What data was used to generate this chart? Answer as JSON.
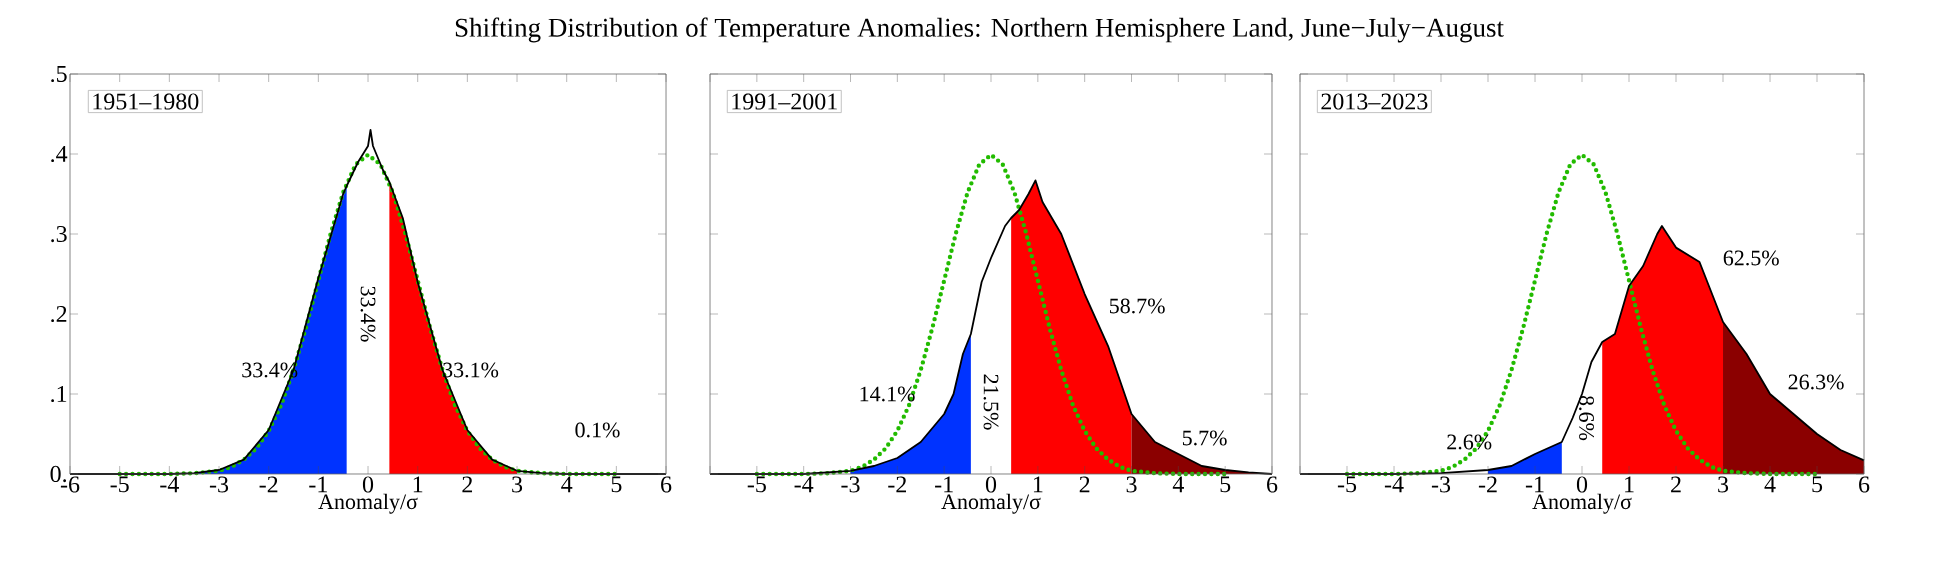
{
  "chart_data": [
    {
      "type": "area",
      "title": "Shifting Distribution of Temperature Anomalies: Northern Hemisphere Land, June−July−August",
      "xlabel": "Anomaly/σ",
      "xlim": [
        -6,
        6
      ],
      "xticks": [
        -6,
        -5,
        -4,
        -3,
        -2,
        -1,
        0,
        1,
        2,
        3,
        4,
        5,
        6
      ],
      "ylim": [
        0,
        0.5
      ],
      "yticks": [
        {
          "value": 0,
          "label": "0."
        },
        {
          "value": 0.1,
          "label": ".1"
        },
        {
          "value": 0.2,
          "label": ".2"
        },
        {
          "value": 0.3,
          "label": ".3"
        },
        {
          "value": 0.4,
          "label": ".4"
        },
        {
          "value": 0.5,
          "label": ".5"
        }
      ],
      "annotations": [
        "1951–1980",
        "33.4%",
        "33.4%",
        "33.1%",
        "0.1%"
      ],
      "series": [
        {
          "color": "#0033ff",
          "x": [
            -3.5,
            -3,
            -2.5,
            -2,
            -1.5,
            -1,
            -0.43
          ],
          "values": [
            0.001,
            0.005,
            0.018,
            0.055,
            0.13,
            0.245,
            0.36
          ]
        },
        {
          "color": "#ff0000",
          "x": [
            0.43,
            0.7,
            1,
            1.5,
            2,
            2.5,
            3
          ],
          "values": [
            0.365,
            0.32,
            0.24,
            0.13,
            0.055,
            0.018,
            0.004
          ]
        },
        {
          "type": "line",
          "color": "#22bb00",
          "line_style": "dotted",
          "x": [
            -5,
            -4.5,
            -4,
            -3.5,
            -3,
            -2.75,
            -2.5,
            -2.25,
            -2,
            -1.75,
            -1.5,
            -1.25,
            -1,
            -0.75,
            -0.5,
            -0.25,
            0,
            0.25,
            0.5,
            0.75,
            1,
            1.25,
            1.5,
            1.75,
            2,
            2.25,
            2.5,
            2.75,
            3,
            3.5,
            4,
            4.5,
            5
          ],
          "values": [
            0,
            0,
            0,
            0.001,
            0.004,
            0.009,
            0.018,
            0.032,
            0.054,
            0.086,
            0.13,
            0.183,
            0.242,
            0.301,
            0.352,
            0.387,
            0.399,
            0.387,
            0.352,
            0.301,
            0.242,
            0.183,
            0.13,
            0.086,
            0.054,
            0.032,
            0.018,
            0.009,
            0.004,
            0.001,
            0,
            0,
            0
          ]
        },
        {
          "type": "line",
          "color": "#000000",
          "line_style": "solid",
          "x": [
            -6,
            -4,
            -3.5,
            -3,
            -2.5,
            -2,
            -1.5,
            -1,
            -0.5,
            -0.43,
            -0.2,
            0,
            0.05,
            0.1,
            0.3,
            0.43,
            0.7,
            1,
            1.5,
            2,
            2.5,
            3,
            3.5,
            4,
            6
          ],
          "values": [
            0,
            0,
            0.001,
            0.005,
            0.018,
            0.055,
            0.13,
            0.245,
            0.35,
            0.36,
            0.39,
            0.41,
            0.43,
            0.41,
            0.38,
            0.365,
            0.32,
            0.24,
            0.13,
            0.055,
            0.018,
            0.004,
            0.001,
            0,
            0
          ]
        }
      ]
    },
    {
      "type": "area",
      "xlabel": "Anomaly/σ",
      "tick_labels": "x",
      "xlim": [
        -6,
        6
      ],
      "xticks": [
        {
          "value": -6,
          "label": null
        },
        -5,
        -4,
        -3,
        -2,
        -1,
        0,
        1,
        2,
        3,
        4,
        5,
        6
      ],
      "ylim": [
        0,
        0.5
      ],
      "yticks": [
        {
          "value": 0,
          "label": null
        },
        {
          "value": 0.1,
          "label": null
        },
        {
          "value": 0.2,
          "label": null
        },
        {
          "value": 0.3,
          "label": null
        },
        {
          "value": 0.4,
          "label": null
        },
        {
          "value": 0.5,
          "label": null
        }
      ],
      "annotations": [
        "1991–2001",
        "14.1%",
        "21.5%",
        "58.7%",
        "5.7%"
      ],
      "series": [
        {
          "color": "#0033ff",
          "x": [
            -3,
            -2.5,
            -2,
            -1.5,
            -1,
            -0.8,
            -0.6,
            -0.43
          ],
          "values": [
            0.004,
            0.01,
            0.02,
            0.04,
            0.075,
            0.1,
            0.15,
            0.175
          ]
        },
        {
          "color": "#ff0000",
          "x": [
            0.43,
            0.6,
            0.8,
            0.95,
            1.1,
            1.2,
            1.5,
            2,
            2.5,
            3
          ],
          "values": [
            0.32,
            0.33,
            0.35,
            0.367,
            0.34,
            0.33,
            0.3,
            0.225,
            0.16,
            0.075
          ]
        },
        {
          "color": "#8b0000",
          "x": [
            3,
            3.5,
            4,
            4.5,
            5,
            5.5,
            6
          ],
          "values": [
            0.075,
            0.04,
            0.025,
            0.01,
            0.005,
            0.002,
            0
          ]
        },
        {
          "type": "line",
          "color": "#22bb00",
          "line_style": "dotted",
          "x": [
            -5,
            -4.5,
            -4,
            -3.5,
            -3,
            -2.75,
            -2.5,
            -2.25,
            -2,
            -1.75,
            -1.5,
            -1.25,
            -1,
            -0.75,
            -0.5,
            -0.25,
            0,
            0.25,
            0.5,
            0.75,
            1,
            1.25,
            1.5,
            1.75,
            2,
            2.25,
            2.5,
            2.75,
            3,
            3.5,
            4,
            4.5,
            5
          ],
          "values": [
            0,
            0,
            0,
            0.001,
            0.004,
            0.009,
            0.018,
            0.032,
            0.054,
            0.086,
            0.13,
            0.183,
            0.242,
            0.301,
            0.352,
            0.387,
            0.399,
            0.387,
            0.352,
            0.301,
            0.242,
            0.183,
            0.13,
            0.086,
            0.054,
            0.032,
            0.018,
            0.009,
            0.004,
            0.001,
            0,
            0,
            0
          ]
        },
        {
          "type": "line",
          "color": "#000000",
          "line_style": "solid",
          "x": [
            -6,
            -4,
            -3,
            -2.5,
            -2,
            -1.5,
            -1,
            -0.8,
            -0.6,
            -0.43,
            -0.2,
            0,
            0.3,
            0.43,
            0.6,
            0.8,
            0.95,
            1.1,
            1.2,
            1.5,
            2,
            2.5,
            3,
            3.5,
            4,
            4.5,
            5,
            5.5,
            6
          ],
          "values": [
            0,
            0,
            0.004,
            0.01,
            0.02,
            0.04,
            0.075,
            0.1,
            0.15,
            0.175,
            0.24,
            0.27,
            0.31,
            0.32,
            0.33,
            0.35,
            0.367,
            0.34,
            0.33,
            0.3,
            0.225,
            0.16,
            0.075,
            0.04,
            0.025,
            0.01,
            0.005,
            0.002,
            0
          ]
        }
      ]
    },
    {
      "type": "area",
      "xlabel": "Anomaly/σ",
      "tick_labels": "x",
      "xlim": [
        -6,
        6
      ],
      "xticks": [
        {
          "value": -6,
          "label": null
        },
        -5,
        -4,
        -3,
        -2,
        -1,
        0,
        1,
        2,
        3,
        4,
        5,
        6
      ],
      "ylim": [
        0,
        0.5
      ],
      "yticks": [
        {
          "value": 0,
          "label": null
        },
        {
          "value": 0.1,
          "label": null
        },
        {
          "value": 0.2,
          "label": null
        },
        {
          "value": 0.3,
          "label": null
        },
        {
          "value": 0.4,
          "label": null
        },
        {
          "value": 0.5,
          "label": null
        }
      ],
      "annotations": [
        "2013–2023",
        "2.6%",
        "8.6%",
        "62.5%",
        "26.3%"
      ],
      "series": [
        {
          "color": "#0033ff",
          "x": [
            -2,
            -1.5,
            -1,
            -0.43
          ],
          "values": [
            0.005,
            0.01,
            0.025,
            0.04
          ]
        },
        {
          "color": "#ff0000",
          "x": [
            0.43,
            0.7,
            1,
            1.3,
            1.6,
            1.7,
            2,
            2.5,
            3
          ],
          "values": [
            0.165,
            0.175,
            0.235,
            0.26,
            0.3,
            0.31,
            0.283,
            0.265,
            0.19
          ]
        },
        {
          "color": "#8b0000",
          "x": [
            3,
            3.5,
            4,
            4.5,
            5,
            5.5,
            6
          ],
          "values": [
            0.19,
            0.15,
            0.1,
            0.075,
            0.05,
            0.03,
            0.017
          ]
        },
        {
          "type": "line",
          "color": "#22bb00",
          "line_style": "dotted",
          "x": [
            -5,
            -4.5,
            -4,
            -3.5,
            -3,
            -2.75,
            -2.5,
            -2.25,
            -2,
            -1.75,
            -1.5,
            -1.25,
            -1,
            -0.75,
            -0.5,
            -0.25,
            0,
            0.25,
            0.5,
            0.75,
            1,
            1.25,
            1.5,
            1.75,
            2,
            2.25,
            2.5,
            2.75,
            3,
            3.5,
            4,
            4.5,
            5
          ],
          "values": [
            0,
            0,
            0,
            0.001,
            0.004,
            0.009,
            0.018,
            0.032,
            0.054,
            0.086,
            0.13,
            0.183,
            0.242,
            0.301,
            0.352,
            0.387,
            0.399,
            0.387,
            0.352,
            0.301,
            0.242,
            0.183,
            0.13,
            0.086,
            0.054,
            0.032,
            0.018,
            0.009,
            0.004,
            0.001,
            0,
            0,
            0
          ]
        },
        {
          "type": "line",
          "color": "#000000",
          "line_style": "solid",
          "x": [
            -6,
            -4,
            -3,
            -2,
            -1.5,
            -1,
            -0.43,
            -0.2,
            0,
            0.2,
            0.43,
            0.7,
            1,
            1.3,
            1.6,
            1.7,
            2,
            2.5,
            3,
            3.5,
            4,
            4.5,
            5,
            5.5,
            6
          ],
          "values": [
            0,
            0,
            0.001,
            0.005,
            0.01,
            0.025,
            0.04,
            0.07,
            0.1,
            0.14,
            0.165,
            0.175,
            0.235,
            0.26,
            0.3,
            0.31,
            0.283,
            0.265,
            0.19,
            0.15,
            0.1,
            0.075,
            0.05,
            0.03,
            0.017
          ]
        }
      ]
    }
  ]
}
